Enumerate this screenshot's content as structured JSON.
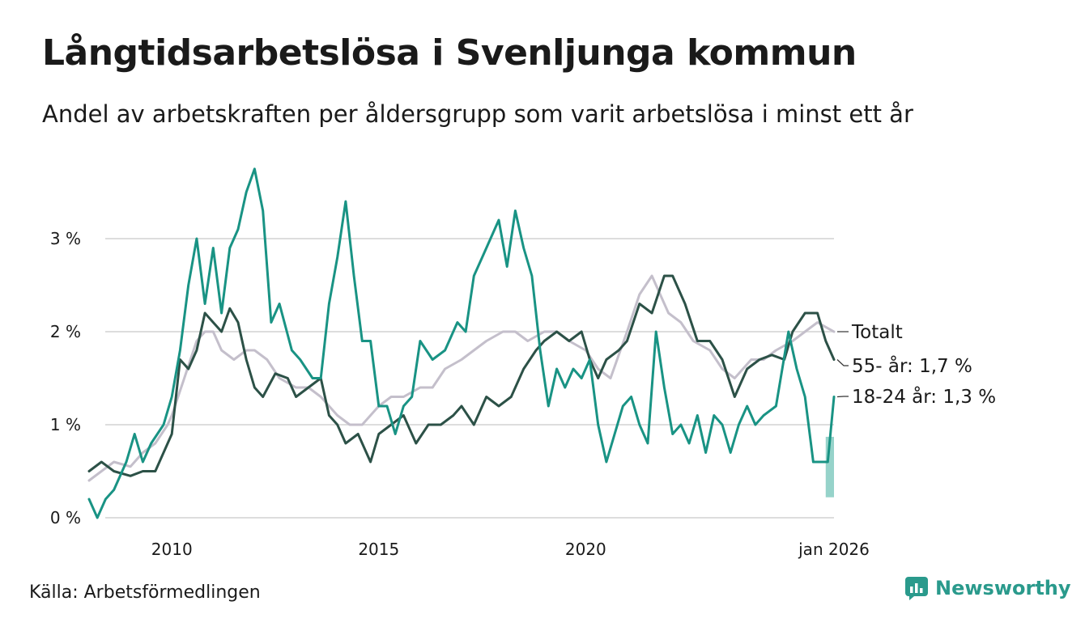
{
  "title": "Långtidsarbetslösa i Svenljunga kommun",
  "subtitle": "Andel av arbetskraften per åldersgrupp som varit arbetslösa i minst ett år",
  "source": "Källa: Arbetsförmedlingen",
  "brand": {
    "name": "Newsworthy",
    "icon": "newsworthy-logo-icon"
  },
  "colors": {
    "total": "#c4bfcb",
    "age_55": "#2c5147",
    "age_18_24": "#199384",
    "band": "#7cc8bd",
    "grid": "#dddddd"
  },
  "chart_data": {
    "type": "line",
    "title": "Långtidsarbetslösa i Svenljunga kommun",
    "xlabel": "",
    "ylabel": "",
    "xlim": [
      2008.0,
      2026.0
    ],
    "ylim": [
      0,
      3.8
    ],
    "y_ticks": [
      {
        "value": 0,
        "label": "0 %"
      },
      {
        "value": 1,
        "label": "1 %"
      },
      {
        "value": 2,
        "label": "2 %"
      },
      {
        "value": 3,
        "label": "3 %"
      }
    ],
    "x_ticks": [
      {
        "value": 2010,
        "label": "2010"
      },
      {
        "value": 2015,
        "label": "2015"
      },
      {
        "value": 2020,
        "label": "2020"
      },
      {
        "value": 2026,
        "label": "jan 2026"
      }
    ],
    "grid": true,
    "series": [
      {
        "key": "total",
        "name": "Totalt",
        "legend_label": "Totalt",
        "points": [
          [
            2008.0,
            0.4
          ],
          [
            2008.3,
            0.5
          ],
          [
            2008.6,
            0.6
          ],
          [
            2009.0,
            0.55
          ],
          [
            2009.3,
            0.7
          ],
          [
            2009.6,
            0.8
          ],
          [
            2009.9,
            1.0
          ],
          [
            2010.0,
            1.1
          ],
          [
            2010.3,
            1.5
          ],
          [
            2010.6,
            1.9
          ],
          [
            2010.8,
            2.0
          ],
          [
            2011.0,
            2.0
          ],
          [
            2011.2,
            1.8
          ],
          [
            2011.5,
            1.7
          ],
          [
            2011.8,
            1.8
          ],
          [
            2012.0,
            1.8
          ],
          [
            2012.3,
            1.7
          ],
          [
            2012.6,
            1.5
          ],
          [
            2013.0,
            1.4
          ],
          [
            2013.3,
            1.4
          ],
          [
            2013.6,
            1.3
          ],
          [
            2014.0,
            1.1
          ],
          [
            2014.3,
            1.0
          ],
          [
            2014.6,
            1.0
          ],
          [
            2015.0,
            1.2
          ],
          [
            2015.3,
            1.3
          ],
          [
            2015.6,
            1.3
          ],
          [
            2016.0,
            1.4
          ],
          [
            2016.3,
            1.4
          ],
          [
            2016.6,
            1.6
          ],
          [
            2017.0,
            1.7
          ],
          [
            2017.3,
            1.8
          ],
          [
            2017.6,
            1.9
          ],
          [
            2018.0,
            2.0
          ],
          [
            2018.3,
            2.0
          ],
          [
            2018.6,
            1.9
          ],
          [
            2019.0,
            2.0
          ],
          [
            2019.3,
            2.0
          ],
          [
            2019.6,
            1.9
          ],
          [
            2020.0,
            1.8
          ],
          [
            2020.3,
            1.6
          ],
          [
            2020.6,
            1.5
          ],
          [
            2021.0,
            2.0
          ],
          [
            2021.3,
            2.4
          ],
          [
            2021.6,
            2.6
          ],
          [
            2022.0,
            2.2
          ],
          [
            2022.3,
            2.1
          ],
          [
            2022.6,
            1.9
          ],
          [
            2023.0,
            1.8
          ],
          [
            2023.3,
            1.6
          ],
          [
            2023.6,
            1.5
          ],
          [
            2024.0,
            1.7
          ],
          [
            2024.3,
            1.7
          ],
          [
            2024.6,
            1.8
          ],
          [
            2025.0,
            1.9
          ],
          [
            2025.3,
            2.0
          ],
          [
            2025.6,
            2.1
          ],
          [
            2025.8,
            2.05
          ],
          [
            2026.0,
            2.0
          ]
        ]
      },
      {
        "key": "age_55",
        "name": "55- år",
        "legend_label": "55- år: 1,7 %",
        "points": [
          [
            2008.0,
            0.5
          ],
          [
            2008.3,
            0.6
          ],
          [
            2008.6,
            0.5
          ],
          [
            2009.0,
            0.45
          ],
          [
            2009.3,
            0.5
          ],
          [
            2009.6,
            0.5
          ],
          [
            2010.0,
            0.9
          ],
          [
            2010.2,
            1.7
          ],
          [
            2010.4,
            1.6
          ],
          [
            2010.6,
            1.8
          ],
          [
            2010.8,
            2.2
          ],
          [
            2011.0,
            2.1
          ],
          [
            2011.2,
            2.0
          ],
          [
            2011.4,
            2.25
          ],
          [
            2011.6,
            2.1
          ],
          [
            2011.8,
            1.7
          ],
          [
            2012.0,
            1.4
          ],
          [
            2012.2,
            1.3
          ],
          [
            2012.5,
            1.55
          ],
          [
            2012.8,
            1.5
          ],
          [
            2013.0,
            1.3
          ],
          [
            2013.3,
            1.4
          ],
          [
            2013.6,
            1.5
          ],
          [
            2013.8,
            1.1
          ],
          [
            2014.0,
            1.0
          ],
          [
            2014.2,
            0.8
          ],
          [
            2014.5,
            0.9
          ],
          [
            2014.8,
            0.6
          ],
          [
            2015.0,
            0.9
          ],
          [
            2015.3,
            1.0
          ],
          [
            2015.6,
            1.1
          ],
          [
            2015.9,
            0.8
          ],
          [
            2016.2,
            1.0
          ],
          [
            2016.5,
            1.0
          ],
          [
            2016.8,
            1.1
          ],
          [
            2017.0,
            1.2
          ],
          [
            2017.3,
            1.0
          ],
          [
            2017.6,
            1.3
          ],
          [
            2017.9,
            1.2
          ],
          [
            2018.2,
            1.3
          ],
          [
            2018.5,
            1.6
          ],
          [
            2018.8,
            1.8
          ],
          [
            2019.0,
            1.9
          ],
          [
            2019.3,
            2.0
          ],
          [
            2019.6,
            1.9
          ],
          [
            2019.9,
            2.0
          ],
          [
            2020.1,
            1.7
          ],
          [
            2020.3,
            1.5
          ],
          [
            2020.5,
            1.7
          ],
          [
            2020.8,
            1.8
          ],
          [
            2021.0,
            1.9
          ],
          [
            2021.3,
            2.3
          ],
          [
            2021.6,
            2.2
          ],
          [
            2021.9,
            2.6
          ],
          [
            2022.1,
            2.6
          ],
          [
            2022.4,
            2.3
          ],
          [
            2022.7,
            1.9
          ],
          [
            2023.0,
            1.9
          ],
          [
            2023.3,
            1.7
          ],
          [
            2023.6,
            1.3
          ],
          [
            2023.9,
            1.6
          ],
          [
            2024.2,
            1.7
          ],
          [
            2024.5,
            1.75
          ],
          [
            2024.8,
            1.7
          ],
          [
            2025.0,
            2.0
          ],
          [
            2025.3,
            2.2
          ],
          [
            2025.6,
            2.2
          ],
          [
            2025.8,
            1.9
          ],
          [
            2026.0,
            1.7
          ]
        ]
      },
      {
        "key": "age_18_24",
        "name": "18-24 år",
        "legend_label": "18-24 år: 1,3 %",
        "points": [
          [
            2008.0,
            0.2
          ],
          [
            2008.2,
            0.0
          ],
          [
            2008.4,
            0.2
          ],
          [
            2008.6,
            0.3
          ],
          [
            2008.9,
            0.6
          ],
          [
            2009.1,
            0.9
          ],
          [
            2009.3,
            0.6
          ],
          [
            2009.5,
            0.8
          ],
          [
            2009.8,
            1.0
          ],
          [
            2010.0,
            1.3
          ],
          [
            2010.2,
            1.8
          ],
          [
            2010.4,
            2.5
          ],
          [
            2010.6,
            3.0
          ],
          [
            2010.8,
            2.3
          ],
          [
            2011.0,
            2.9
          ],
          [
            2011.2,
            2.2
          ],
          [
            2011.4,
            2.9
          ],
          [
            2011.6,
            3.1
          ],
          [
            2011.8,
            3.5
          ],
          [
            2012.0,
            3.75
          ],
          [
            2012.2,
            3.3
          ],
          [
            2012.4,
            2.1
          ],
          [
            2012.6,
            2.3
          ],
          [
            2012.9,
            1.8
          ],
          [
            2013.1,
            1.7
          ],
          [
            2013.4,
            1.5
          ],
          [
            2013.6,
            1.5
          ],
          [
            2013.8,
            2.3
          ],
          [
            2014.0,
            2.8
          ],
          [
            2014.2,
            3.4
          ],
          [
            2014.4,
            2.6
          ],
          [
            2014.6,
            1.9
          ],
          [
            2014.8,
            1.9
          ],
          [
            2015.0,
            1.2
          ],
          [
            2015.2,
            1.2
          ],
          [
            2015.4,
            0.9
          ],
          [
            2015.6,
            1.2
          ],
          [
            2015.8,
            1.3
          ],
          [
            2016.0,
            1.9
          ],
          [
            2016.3,
            1.7
          ],
          [
            2016.6,
            1.8
          ],
          [
            2016.9,
            2.1
          ],
          [
            2017.1,
            2.0
          ],
          [
            2017.3,
            2.6
          ],
          [
            2017.5,
            2.8
          ],
          [
            2017.7,
            3.0
          ],
          [
            2017.9,
            3.2
          ],
          [
            2018.1,
            2.7
          ],
          [
            2018.3,
            3.3
          ],
          [
            2018.5,
            2.9
          ],
          [
            2018.7,
            2.6
          ],
          [
            2018.9,
            1.8
          ],
          [
            2019.1,
            1.2
          ],
          [
            2019.3,
            1.6
          ],
          [
            2019.5,
            1.4
          ],
          [
            2019.7,
            1.6
          ],
          [
            2019.9,
            1.5
          ],
          [
            2020.1,
            1.7
          ],
          [
            2020.3,
            1.0
          ],
          [
            2020.5,
            0.6
          ],
          [
            2020.7,
            0.9
          ],
          [
            2020.9,
            1.2
          ],
          [
            2021.1,
            1.3
          ],
          [
            2021.3,
            1.0
          ],
          [
            2021.5,
            0.8
          ],
          [
            2021.7,
            2.0
          ],
          [
            2021.9,
            1.4
          ],
          [
            2022.1,
            0.9
          ],
          [
            2022.3,
            1.0
          ],
          [
            2022.5,
            0.8
          ],
          [
            2022.7,
            1.1
          ],
          [
            2022.9,
            0.7
          ],
          [
            2023.1,
            1.1
          ],
          [
            2023.3,
            1.0
          ],
          [
            2023.5,
            0.7
          ],
          [
            2023.7,
            1.0
          ],
          [
            2023.9,
            1.2
          ],
          [
            2024.1,
            1.0
          ],
          [
            2024.3,
            1.1
          ],
          [
            2024.6,
            1.2
          ],
          [
            2024.9,
            2.0
          ],
          [
            2025.1,
            1.6
          ],
          [
            2025.3,
            1.3
          ],
          [
            2025.5,
            0.6
          ],
          [
            2025.7,
            0.6
          ],
          [
            2025.85,
            0.6
          ],
          [
            2026.0,
            1.3
          ]
        ]
      }
    ],
    "band": {
      "x_start": 2025.8,
      "x_end": 2026.0,
      "y_low": 0.22,
      "y_high": 0.87
    }
  }
}
